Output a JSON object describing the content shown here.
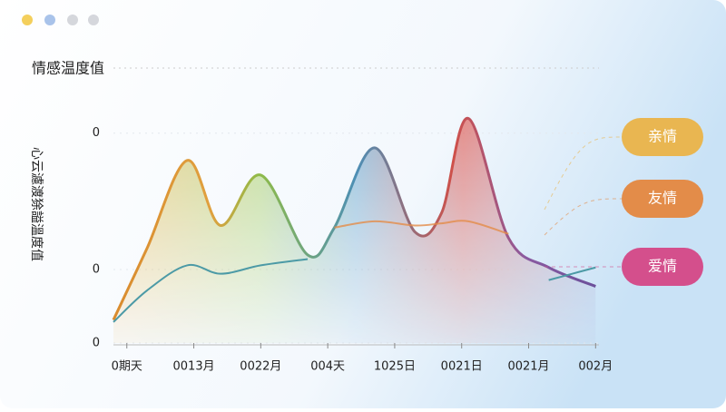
{
  "chart_data": {
    "type": "line",
    "title": "情感温度值",
    "y_label": "心云濾渡狳謚溫度值",
    "x": [
      -0.2,
      0.3,
      0.9,
      1.4,
      2.0,
      2.7,
      3.1,
      3.7,
      4.3,
      4.7,
      5.1,
      5.7,
      6.3,
      7.0
    ],
    "xlim": [
      -0.2,
      7.05
    ],
    "xticks": [
      {
        "value": 0,
        "label": "0期天"
      },
      {
        "value": 1,
        "label": "0013月"
      },
      {
        "value": 2,
        "label": "0022月"
      },
      {
        "value": 3,
        "label": "004天"
      },
      {
        "value": 4,
        "label": "1025日"
      },
      {
        "value": 5,
        "label": "0021日"
      },
      {
        "value": 6,
        "label": "0021月"
      },
      {
        "value": 7,
        "label": "002月"
      }
    ],
    "ylim": [
      0,
      115
    ],
    "yticks": [
      {
        "value": 0,
        "label": "0"
      },
      {
        "value": 35,
        "label": "0"
      },
      {
        "value": 100,
        "label": "0"
      }
    ],
    "series": [
      {
        "name": "亲情",
        "color": "#e9b651",
        "values": [
          11,
          45,
          87,
          56,
          80,
          42,
          55,
          93,
          53,
          62,
          107,
          50,
          36,
          27
        ]
      },
      {
        "name": "友情",
        "color": "#e38c49",
        "values": [
          null,
          null,
          null,
          null,
          null,
          null,
          55,
          58,
          56,
          57,
          58,
          52,
          null,
          null
        ]
      },
      {
        "name": "爱情",
        "color": "#d44f8c",
        "values": [
          10,
          25,
          37,
          33,
          37,
          40,
          null,
          null,
          null,
          null,
          null,
          null,
          30,
          36
        ]
      }
    ]
  }
}
